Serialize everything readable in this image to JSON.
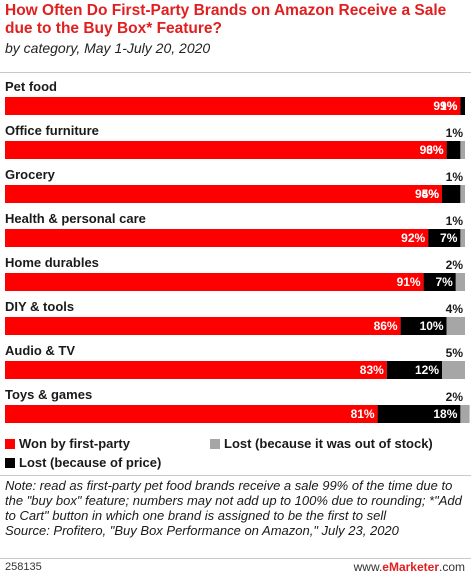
{
  "header": {
    "title": "How Often Do First-Party Brands on Amazon Receive a Sale due to the Buy Box* Feature?",
    "subtitle": "by category, May 1-July 20, 2020"
  },
  "chart_data": {
    "type": "bar",
    "orientation": "horizontal",
    "stacked": true,
    "categories": [
      "Pet food",
      "Office furniture",
      "Grocery",
      "Health & personal care",
      "Home durables",
      "DIY & tools",
      "Audio & TV",
      "Toys & games"
    ],
    "series": [
      {
        "name": "Won by first-party",
        "color": "#ff0000",
        "values": [
          99,
          96,
          95,
          92,
          91,
          86,
          83,
          81
        ]
      },
      {
        "name": "Lost (because of price)",
        "color": "#000000",
        "values": [
          1,
          3,
          4,
          7,
          7,
          10,
          12,
          18
        ]
      },
      {
        "name": "Lost (because it was out of stock)",
        "color": "#a6a6a6",
        "values": [
          0,
          1,
          1,
          1,
          2,
          4,
          5,
          2
        ]
      }
    ],
    "value_format": "{v}%",
    "xlim": [
      0,
      100
    ],
    "legend_position": "bottom"
  },
  "legend": {
    "won": "Won by first-party",
    "lost_stock": "Lost (because it was out of stock)",
    "lost_price": "Lost (because of price)"
  },
  "footer": {
    "note": "Note: read as first-party pet food brands receive a sale 99% of the time due to the \"buy box\" feature; numbers may not add up to 100% due to rounding; *\"Add to Cart\" button in which one brand is assigned to be the first to sell",
    "source": "Source: Profitero, \"Buy Box Performance on Amazon,\" July 23, 2020",
    "chart_id": "258135",
    "brand_prefix": "www.",
    "brand_name": "eMarketer",
    "brand_suffix": ".com"
  }
}
